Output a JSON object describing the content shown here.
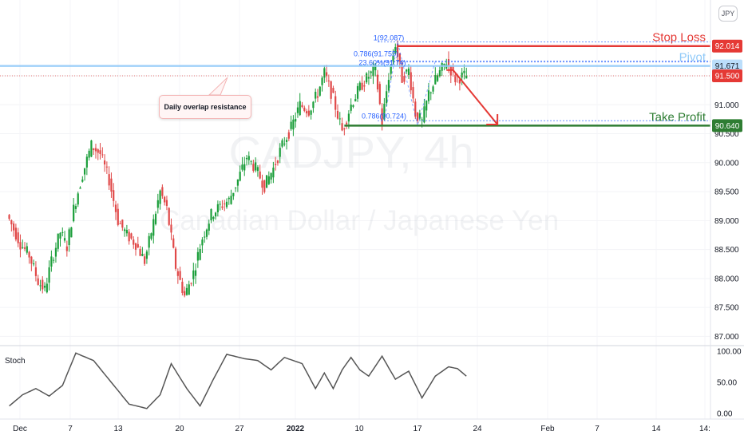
{
  "symbol": "CADJPY",
  "watermark": {
    "ticker": "CADJPY, 4h",
    "name": "Canadian Dollar / Japanese Yen"
  },
  "currency_button": "JPY",
  "stoch_label": "Stoch",
  "annotation": "Daily overlap resistance",
  "levels": {
    "stop_loss": {
      "label": "Stop Loss",
      "price_text": "92.014",
      "color": "#e53935"
    },
    "pivot": {
      "label": "Pivot",
      "price_text": "91.671",
      "color": "#90caf9"
    },
    "take_profit": {
      "label": "Take Profit",
      "price_text": "90.640",
      "color": "#2e7d32"
    }
  },
  "current_price": {
    "price_text": "91.500",
    "color": "#e53935"
  },
  "fib_labels": [
    "1(92.087)",
    "0.786(91.755)",
    "23.60%(91.74)",
    "0.786(90.724)"
  ],
  "colors": {
    "up": "#26a69a",
    "down": "#ef5350",
    "up_body": "#1b9e3a",
    "down_body": "#e04848",
    "stoch": "#555555",
    "pivot_line": "#90caf9"
  },
  "chart_data": {
    "type": "candlestick",
    "title": "CADJPY, 4h",
    "price_axis": {
      "ticks": [
        87.0,
        87.5,
        88.0,
        88.5,
        89.0,
        89.5,
        90.0,
        90.5,
        91.0,
        91.5
      ],
      "tick_labels": [
        "87.000",
        "87.500",
        "88.000",
        "88.500",
        "89.000",
        "89.500",
        "90.000",
        "90.500",
        "91.000",
        "91.500"
      ],
      "range": [
        86.95,
        92.7
      ]
    },
    "time_axis": {
      "labels": [
        "Dec",
        "7",
        "13",
        "20",
        "27",
        "2022",
        "10",
        "17",
        "24",
        "Feb",
        "7",
        "14",
        "14:"
      ]
    },
    "horizontal_levels": [
      {
        "name": "Stop Loss",
        "value": 92.014
      },
      {
        "name": "Pivot",
        "value": 91.671
      },
      {
        "name": "Take Profit",
        "value": 90.64
      }
    ],
    "price_path_keypoints": [
      {
        "t": 0,
        "v": 89.1
      },
      {
        "t": 6,
        "v": 88.6
      },
      {
        "t": 10,
        "v": 88.4
      },
      {
        "t": 14,
        "v": 87.95
      },
      {
        "t": 17,
        "v": 87.8
      },
      {
        "t": 20,
        "v": 88.3
      },
      {
        "t": 24,
        "v": 88.8
      },
      {
        "t": 27,
        "v": 88.55
      },
      {
        "t": 30,
        "v": 89.2
      },
      {
        "t": 34,
        "v": 89.8
      },
      {
        "t": 38,
        "v": 90.3
      },
      {
        "t": 42,
        "v": 90.15
      },
      {
        "t": 46,
        "v": 89.7
      },
      {
        "t": 50,
        "v": 89.0
      },
      {
        "t": 54,
        "v": 88.75
      },
      {
        "t": 58,
        "v": 88.6
      },
      {
        "t": 62,
        "v": 88.3
      },
      {
        "t": 65,
        "v": 88.8
      },
      {
        "t": 69,
        "v": 89.5
      },
      {
        "t": 72,
        "v": 89.2
      },
      {
        "t": 76,
        "v": 88.2
      },
      {
        "t": 80,
        "v": 87.7
      },
      {
        "t": 84,
        "v": 88.1
      },
      {
        "t": 88,
        "v": 88.7
      },
      {
        "t": 92,
        "v": 89.1
      },
      {
        "t": 96,
        "v": 89.25
      },
      {
        "t": 100,
        "v": 89.35
      },
      {
        "t": 104,
        "v": 89.7
      },
      {
        "t": 108,
        "v": 90.1
      },
      {
        "t": 112,
        "v": 89.9
      },
      {
        "t": 116,
        "v": 89.6
      },
      {
        "t": 120,
        "v": 89.9
      },
      {
        "t": 124,
        "v": 90.3
      },
      {
        "t": 128,
        "v": 90.6
      },
      {
        "t": 132,
        "v": 91.0
      },
      {
        "t": 136,
        "v": 90.9
      },
      {
        "t": 140,
        "v": 91.2
      },
      {
        "t": 143,
        "v": 91.55
      },
      {
        "t": 147,
        "v": 91.1
      },
      {
        "t": 151,
        "v": 90.55
      },
      {
        "t": 155,
        "v": 91.0
      },
      {
        "t": 159,
        "v": 91.3
      },
      {
        "t": 163,
        "v": 91.5
      },
      {
        "t": 166,
        "v": 91.6
      },
      {
        "t": 169,
        "v": 90.7
      },
      {
        "t": 172,
        "v": 91.5
      },
      {
        "t": 175,
        "v": 92.05
      },
      {
        "t": 178,
        "v": 91.45
      },
      {
        "t": 181,
        "v": 91.6
      },
      {
        "t": 184,
        "v": 90.85
      },
      {
        "t": 187,
        "v": 90.7
      },
      {
        "t": 190,
        "v": 91.2
      },
      {
        "t": 194,
        "v": 91.5
      },
      {
        "t": 198,
        "v": 91.75
      },
      {
        "t": 202,
        "v": 91.45
      },
      {
        "t": 206,
        "v": 91.5
      }
    ],
    "forecast_arrow": {
      "from": 91.6,
      "to": 90.66
    },
    "stochastic": {
      "ticks": [
        0,
        50,
        100
      ],
      "tick_labels": [
        "0.00",
        "50.00",
        "100.00"
      ],
      "keypoints": [
        {
          "t": 0,
          "v": 12
        },
        {
          "t": 6,
          "v": 30
        },
        {
          "t": 12,
          "v": 40
        },
        {
          "t": 18,
          "v": 28
        },
        {
          "t": 24,
          "v": 45
        },
        {
          "t": 30,
          "v": 97
        },
        {
          "t": 38,
          "v": 85
        },
        {
          "t": 46,
          "v": 50
        },
        {
          "t": 54,
          "v": 15
        },
        {
          "t": 62,
          "v": 8
        },
        {
          "t": 68,
          "v": 30
        },
        {
          "t": 73,
          "v": 80
        },
        {
          "t": 80,
          "v": 40
        },
        {
          "t": 86,
          "v": 12
        },
        {
          "t": 92,
          "v": 55
        },
        {
          "t": 98,
          "v": 95
        },
        {
          "t": 106,
          "v": 88
        },
        {
          "t": 112,
          "v": 85
        },
        {
          "t": 118,
          "v": 70
        },
        {
          "t": 124,
          "v": 90
        },
        {
          "t": 132,
          "v": 80
        },
        {
          "t": 138,
          "v": 40
        },
        {
          "t": 142,
          "v": 65
        },
        {
          "t": 146,
          "v": 40
        },
        {
          "t": 150,
          "v": 70
        },
        {
          "t": 154,
          "v": 90
        },
        {
          "t": 158,
          "v": 70
        },
        {
          "t": 162,
          "v": 60
        },
        {
          "t": 168,
          "v": 92
        },
        {
          "t": 174,
          "v": 55
        },
        {
          "t": 180,
          "v": 68
        },
        {
          "t": 186,
          "v": 25
        },
        {
          "t": 192,
          "v": 60
        },
        {
          "t": 198,
          "v": 75
        },
        {
          "t": 202,
          "v": 72
        },
        {
          "t": 206,
          "v": 60
        }
      ]
    }
  }
}
